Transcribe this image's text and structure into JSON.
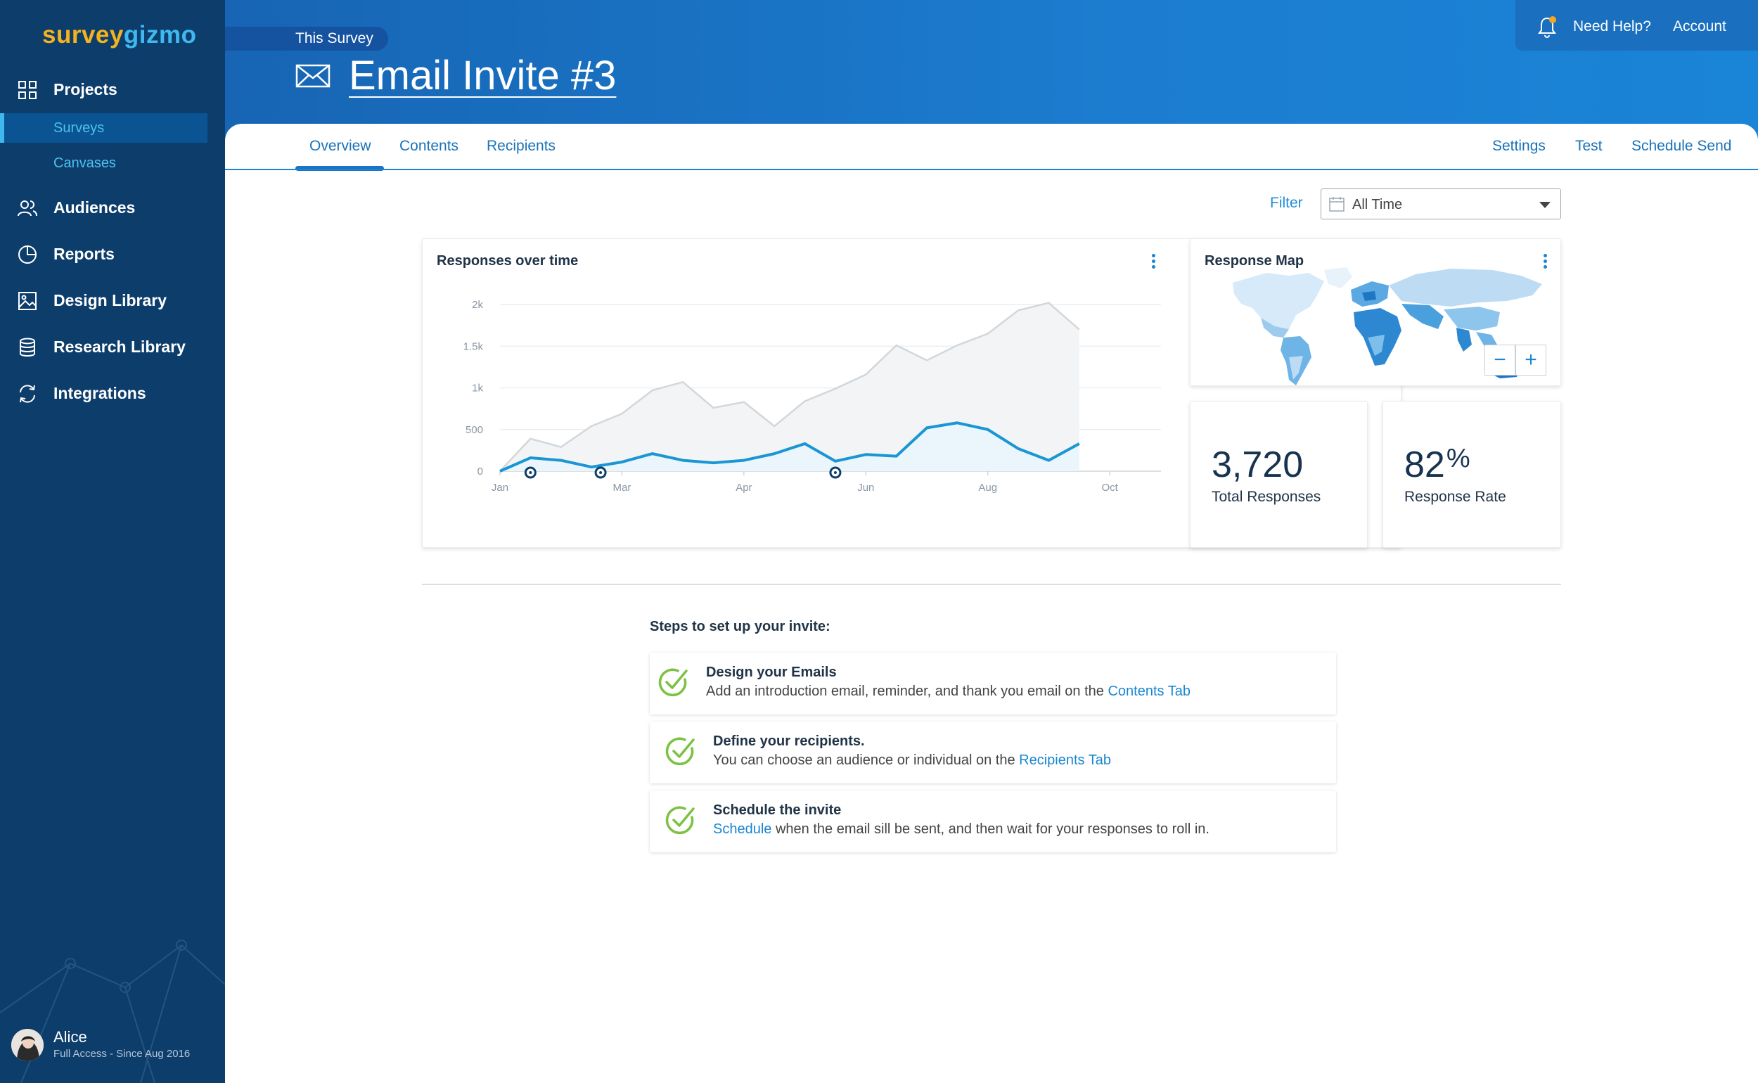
{
  "brand": {
    "part1": "survey",
    "part2": "gizmo"
  },
  "sidebar": {
    "items": [
      {
        "label": "Projects",
        "icon": "grid-icon"
      },
      {
        "label": "Audiences",
        "icon": "users-icon"
      },
      {
        "label": "Reports",
        "icon": "pie-chart-icon"
      },
      {
        "label": "Design Library",
        "icon": "image-icon"
      },
      {
        "label": "Research Library",
        "icon": "database-icon"
      },
      {
        "label": "Integrations",
        "icon": "sync-icon"
      }
    ],
    "subitems": [
      {
        "label": "Surveys",
        "active": true
      },
      {
        "label": "Canvases",
        "active": false
      }
    ],
    "user": {
      "name": "Alice",
      "subtitle": "Full Access - Since Aug 2016"
    }
  },
  "header": {
    "breadcrumb": "This Survey",
    "title": "Email Invite #3",
    "help": "Need Help?",
    "account": "Account"
  },
  "tabs": {
    "left": [
      "Overview",
      "Contents",
      "Recipients"
    ],
    "right": [
      "Settings",
      "Test",
      "Schedule Send"
    ],
    "active": "Overview"
  },
  "filter": {
    "label": "Filter",
    "value": "All Time"
  },
  "responses_card": {
    "title": "Responses over time"
  },
  "map_card": {
    "title": "Response Map",
    "zoom_out": "−",
    "zoom_in": "+"
  },
  "stats": {
    "total": {
      "value": "3,720",
      "label": "Total Responses"
    },
    "rate": {
      "value": "82",
      "unit": "%",
      "label": "Response Rate"
    }
  },
  "steps": {
    "title": "Steps to set up your invite:",
    "items": [
      {
        "title": "Design your Emails",
        "pre": "Add an introduction email, reminder, and thank you email on the ",
        "link": "Contents Tab",
        "post": ""
      },
      {
        "title": "Define your recipients.",
        "pre": "You can choose an audience or individual on the ",
        "link": "Recipients Tab",
        "post": ""
      },
      {
        "title": "Schedule the invite",
        "pre": "",
        "link": "Schedule",
        "post": " when the email sill be sent, and then wait for your responses to roll in."
      }
    ]
  },
  "colors": {
    "accent": "#1a86d1",
    "sidebar": "#0d3d6b",
    "check": "#7cc242",
    "line": "#1a96d4"
  },
  "chart_data": {
    "type": "line",
    "title": "Responses over time",
    "ylim": [
      0,
      2000
    ],
    "y_ticks": [
      "0",
      "500",
      "1k",
      "1.5k",
      "2k"
    ],
    "x_tick_labels": [
      "Jan",
      "Mar",
      "Apr",
      "Jun",
      "Aug",
      "Oct"
    ],
    "x": [
      0,
      1,
      2,
      3,
      4,
      5,
      6,
      7,
      8,
      9,
      10,
      11,
      12,
      13,
      14,
      15,
      16,
      17,
      18,
      19
    ],
    "x_tick_positions": [
      0,
      4,
      8,
      12,
      16,
      20
    ],
    "series": [
      {
        "values": [
          0,
          390,
          290,
          540,
          690,
          970,
          1070,
          760,
          830,
          540,
          840,
          990,
          1160,
          1510,
          1330,
          1510,
          1650,
          1930,
          2020,
          1700
        ]
      },
      {
        "values": [
          0,
          160,
          130,
          50,
          110,
          210,
          130,
          100,
          130,
          210,
          330,
          120,
          200,
          180,
          520,
          580,
          500,
          270,
          130,
          330
        ]
      }
    ],
    "markers_x": [
      1,
      3.3,
      11
    ],
    "grid": true
  }
}
